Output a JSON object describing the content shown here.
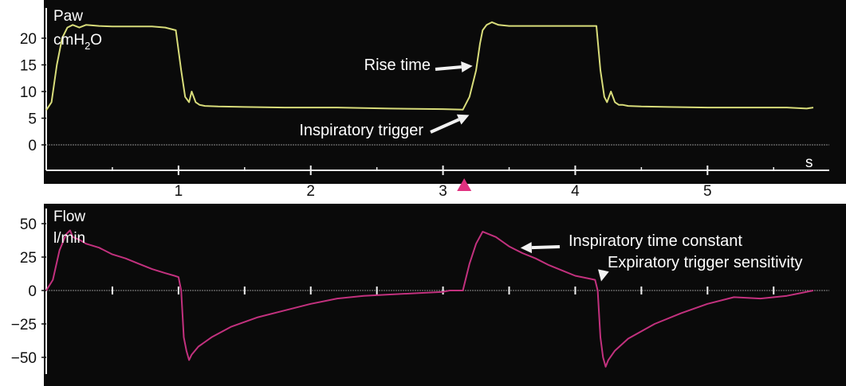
{
  "colors": {
    "panel_bg": "#0a0a0a",
    "axis": "#f2f2f2",
    "zero_line": "#8c8c8c",
    "pressure_trace": "#d8dc7a",
    "flow_trace": "#c2317e",
    "trigger_marker": "#e0307f",
    "annotation_arrow": "#f2f2f2",
    "text": "#ffffff",
    "tick_text": "#111111"
  },
  "chart_data": [
    {
      "type": "line",
      "id": "pressure",
      "label_line1": "Paw",
      "label_unit_main": "cmH",
      "label_unit_sub": "2",
      "label_unit_end": "O",
      "xlabel": "s",
      "xlim": [
        0,
        5.8
      ],
      "ylim": [
        -5,
        25
      ],
      "yticks": [
        0,
        5,
        10,
        15,
        20
      ],
      "xticks": [
        1,
        2,
        3,
        4,
        5
      ],
      "minor_xticks": [
        0.5,
        1.5,
        2.5,
        3.5,
        4.5,
        5.5
      ],
      "series": [
        {
          "x": [
            0,
            0.04,
            0.08,
            0.12,
            0.16,
            0.2,
            0.25,
            0.3,
            0.4,
            0.5,
            0.6,
            0.8,
            0.9,
            0.98,
            1.02,
            1.05,
            1.08,
            1.1,
            1.13,
            1.16,
            1.2,
            1.3,
            1.5,
            1.8,
            2.2,
            2.6,
            3.0,
            3.15,
            3.2,
            3.25,
            3.28,
            3.3,
            3.33,
            3.37,
            3.42,
            3.5,
            3.7,
            3.9,
            4.0,
            4.16,
            4.19,
            4.22,
            4.24,
            4.27,
            4.3,
            4.33,
            4.36,
            4.4,
            4.5,
            4.7,
            5.0,
            5.3,
            5.6,
            5.75,
            5.8
          ],
          "y": [
            6.5,
            8,
            15,
            20,
            22,
            22.5,
            22,
            22.5,
            22.3,
            22.2,
            22.2,
            22.2,
            22,
            21.5,
            14,
            9,
            8,
            10,
            8,
            7.5,
            7.3,
            7.2,
            7.1,
            7.0,
            7.0,
            6.8,
            6.7,
            6.6,
            9,
            14,
            19,
            21.5,
            22.5,
            23,
            22.5,
            22.3,
            22.3,
            22.3,
            22.3,
            22.3,
            14,
            9,
            8,
            10,
            8,
            7.5,
            7.5,
            7.3,
            7.2,
            7.1,
            7.0,
            7.0,
            7.0,
            6.8,
            7.0
          ]
        }
      ],
      "annotations": [
        {
          "text": "Rise time",
          "x": 3.26,
          "y": 14.5
        },
        {
          "text": "Inspiratory trigger",
          "x": 3.15,
          "y": 6.5
        }
      ],
      "trigger_marker": {
        "x": 3.1
      }
    },
    {
      "type": "line",
      "id": "flow",
      "label_line1": "Flow",
      "label_line2": "l/min",
      "xlim": [
        0,
        5.8
      ],
      "ylim": [
        -60,
        60
      ],
      "yticks": [
        -50,
        -25,
        0,
        25,
        50
      ],
      "xticks": [
        0.5,
        1,
        1.5,
        2,
        2.5,
        3,
        3.5,
        4,
        4.5,
        5,
        5.5
      ],
      "series": [
        {
          "x": [
            0,
            0.05,
            0.1,
            0.15,
            0.18,
            0.2,
            0.25,
            0.3,
            0.4,
            0.5,
            0.6,
            0.7,
            0.8,
            0.9,
            0.97,
            1.0,
            1.02,
            1.04,
            1.06,
            1.08,
            1.1,
            1.15,
            1.25,
            1.4,
            1.6,
            1.8,
            2.0,
            2.2,
            2.4,
            2.6,
            2.8,
            3.0,
            3.05,
            3.1,
            3.15,
            3.2,
            3.25,
            3.3,
            3.4,
            3.5,
            3.6,
            3.7,
            3.8,
            3.9,
            4.0,
            4.1,
            4.15,
            4.17,
            4.19,
            4.21,
            4.23,
            4.25,
            4.3,
            4.4,
            4.6,
            4.8,
            5.0,
            5.2,
            5.4,
            5.6,
            5.7,
            5.8
          ],
          "y": [
            0,
            8,
            30,
            42,
            45,
            40,
            38,
            35,
            32,
            27,
            24,
            20,
            16,
            13,
            11,
            10,
            0,
            -35,
            -45,
            -52,
            -48,
            -42,
            -35,
            -27,
            -20,
            -15,
            -10,
            -6,
            -4,
            -3,
            -2,
            -1,
            0,
            0,
            0,
            20,
            35,
            44,
            40,
            33,
            28,
            24,
            19,
            15,
            11,
            9,
            8,
            0,
            -35,
            -50,
            -57,
            -52,
            -45,
            -36,
            -25,
            -17,
            -10,
            -5,
            -6,
            -4,
            -2,
            0
          ]
        }
      ],
      "annotations": [
        {
          "text": "Inspiratory time constant",
          "x": 3.55,
          "y": 33
        },
        {
          "text": "Expiratory trigger sensitivity",
          "x": 4.16,
          "y": 8
        }
      ]
    }
  ]
}
